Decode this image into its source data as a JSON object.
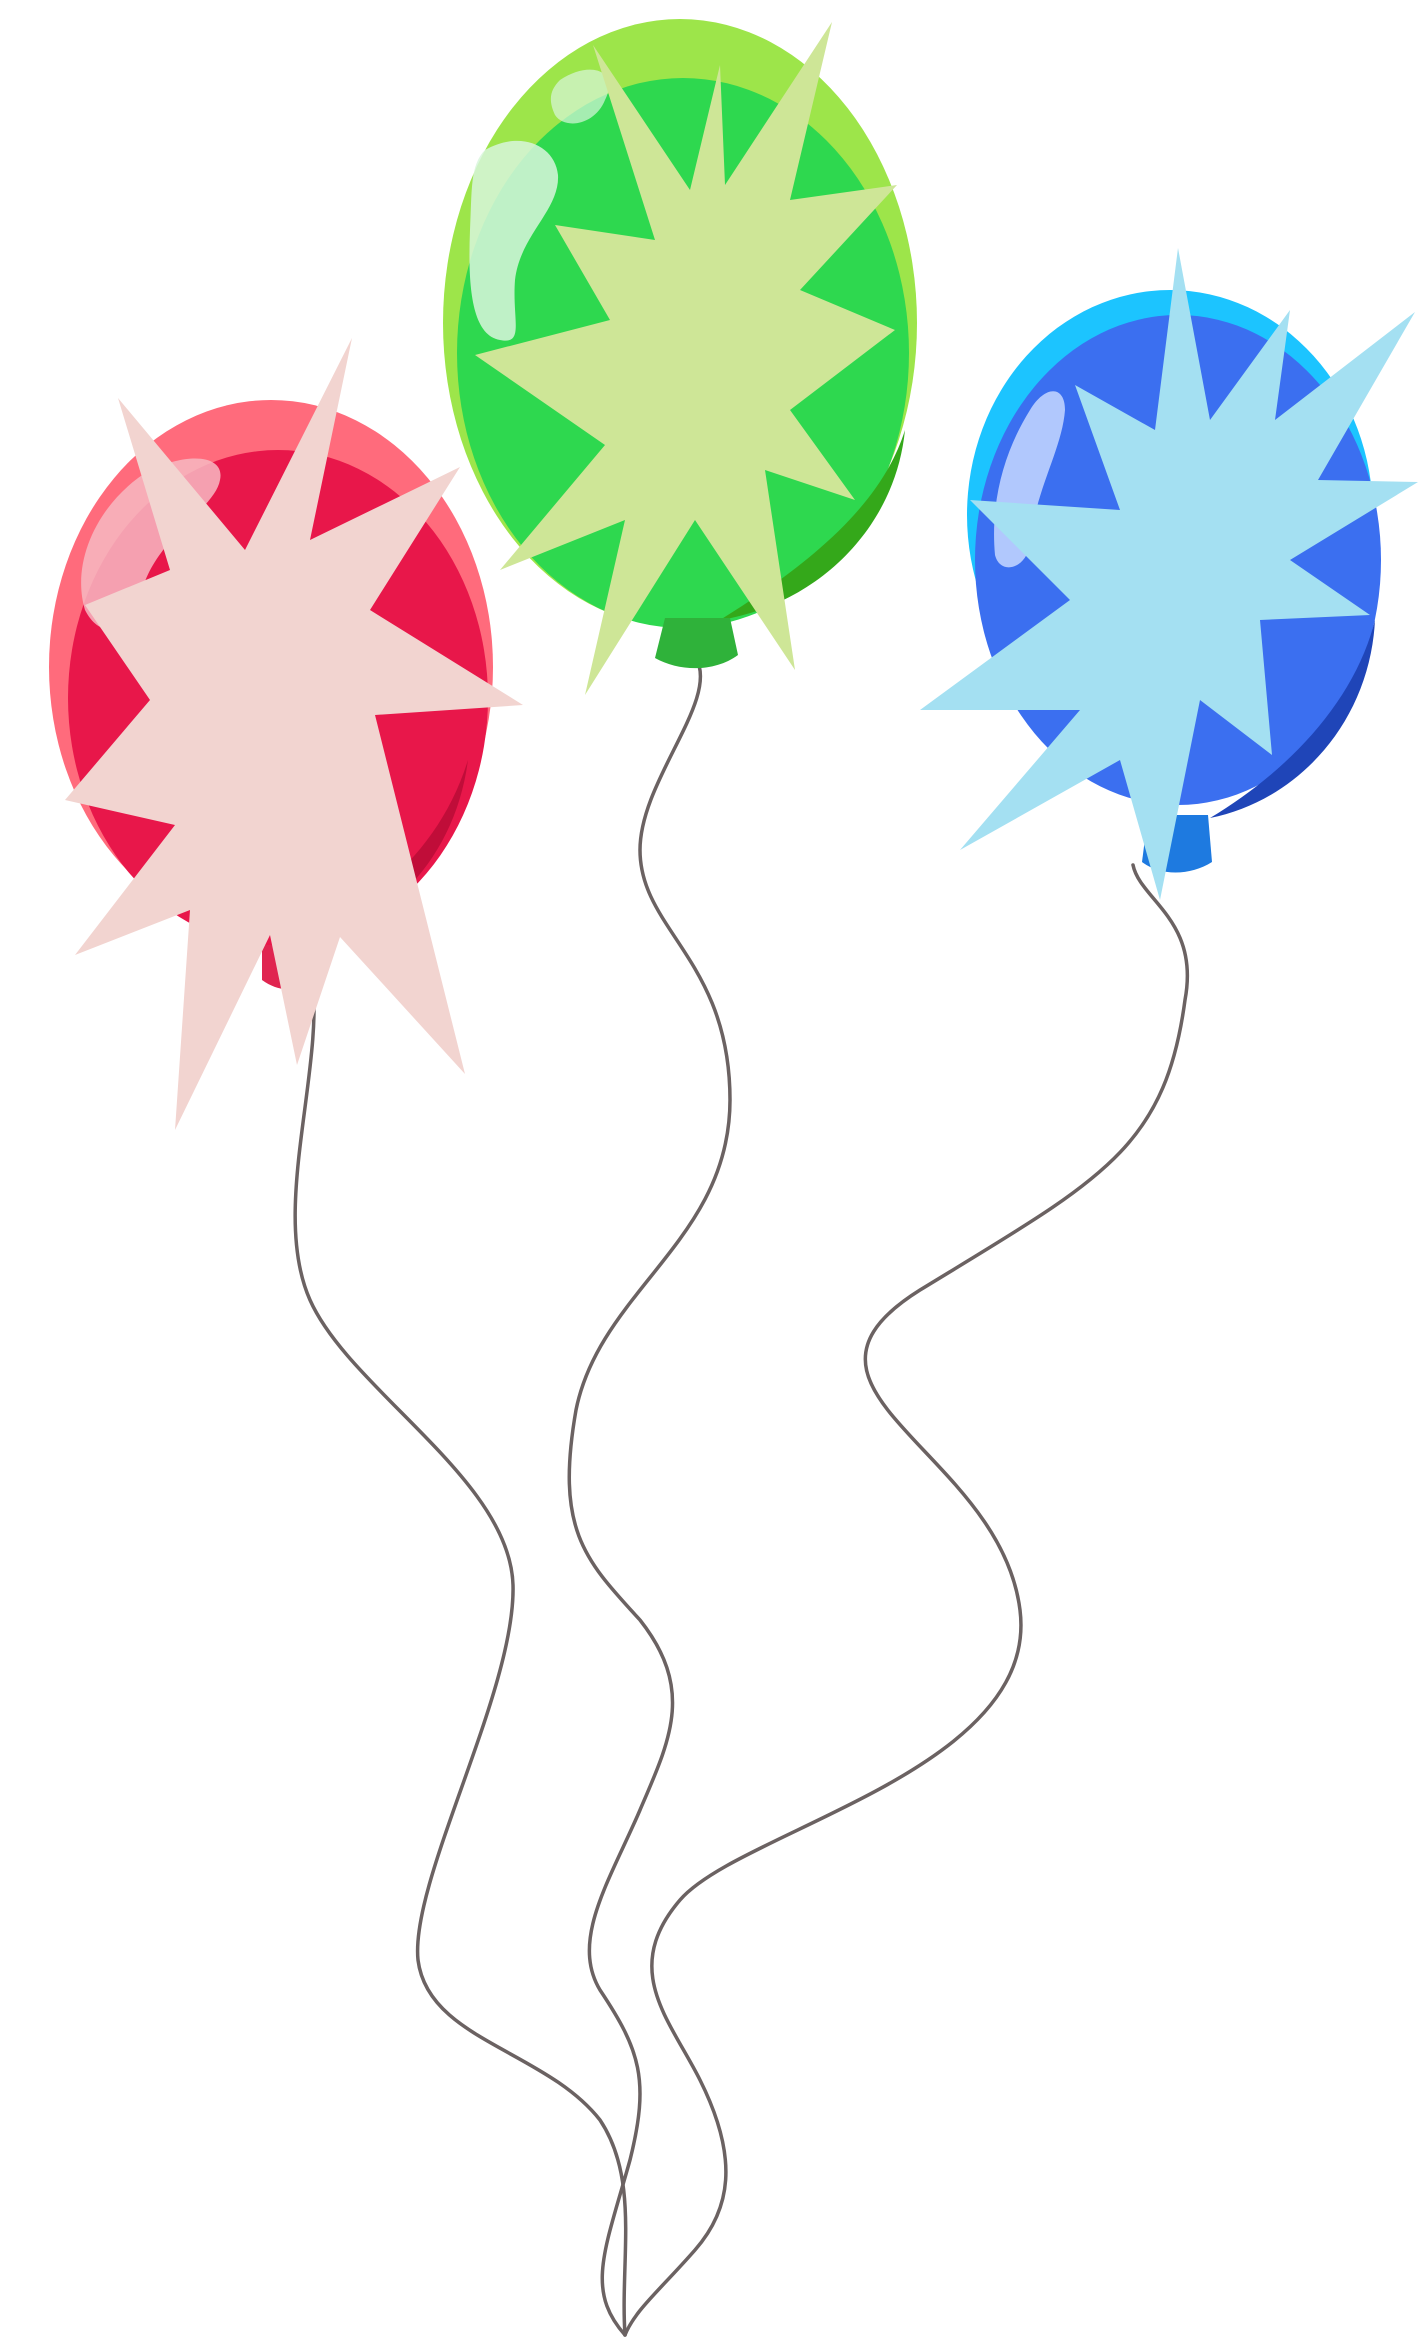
{
  "scene": {
    "background": "#ffffff",
    "string_color": "#6b6262"
  },
  "balloons": [
    {
      "name": "red",
      "colors": {
        "base": "#e8174a",
        "rim": "#ff6b7c",
        "shade": "#c00d39",
        "knot": "#e02550",
        "burst": "#f2d4d0",
        "highlight": "#f7b8c2"
      }
    },
    {
      "name": "green",
      "colors": {
        "base": "#2ed84f",
        "rim": "#9de54a",
        "shade": "#34a81a",
        "knot": "#2fb23a",
        "burst": "#cee697",
        "highlight": "#d8f6dc"
      }
    },
    {
      "name": "blue",
      "colors": {
        "base": "#3b6ff0",
        "rim": "#1cc4ff",
        "shade": "#1f45b8",
        "knot": "#1e7ae0",
        "burst": "#a4e0f2",
        "highlight": "#c7d8ff"
      }
    }
  ]
}
